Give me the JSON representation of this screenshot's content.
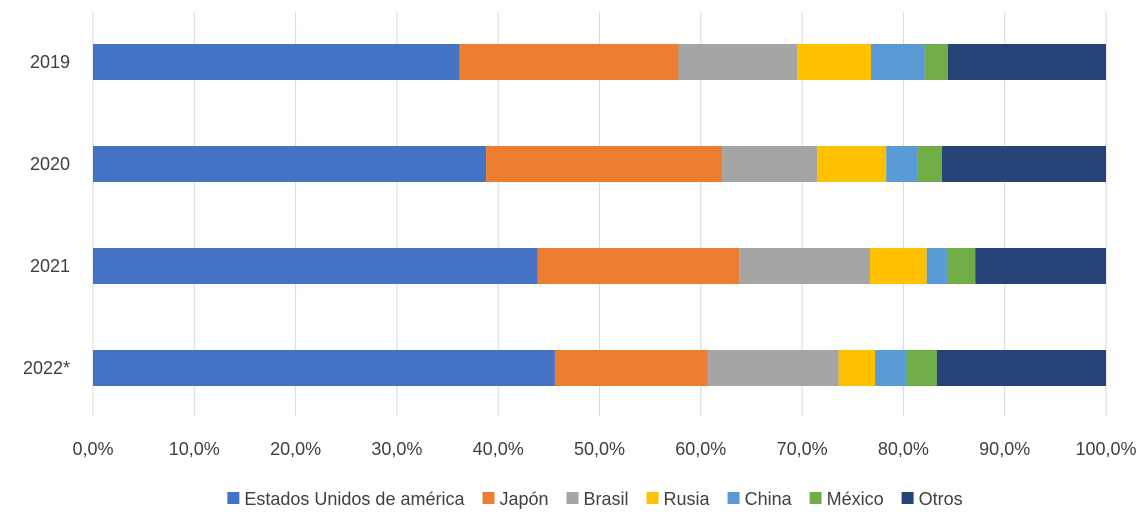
{
  "chart_data": {
    "type": "bar",
    "orientation": "horizontal",
    "stacked": "percent",
    "categories": [
      "2019",
      "2020",
      "2021",
      "2022*"
    ],
    "xlim": [
      0,
      100
    ],
    "x_ticks": [
      "0,0%",
      "10,0%",
      "20,0%",
      "30,0%",
      "40,0%",
      "50,0%",
      "60,0%",
      "70,0%",
      "80,0%",
      "90,0%",
      "100,0%"
    ],
    "grid": "vertical",
    "legend_position": "bottom",
    "series": [
      {
        "name": "Estados Unidos de américa",
        "color": "#4472C4",
        "values": [
          36.2,
          38.8,
          43.9,
          45.6
        ]
      },
      {
        "name": "Japón",
        "color": "#ED7D31",
        "values": [
          21.6,
          23.3,
          19.9,
          15.1
        ]
      },
      {
        "name": "Brasil",
        "color": "#A5A5A5",
        "values": [
          11.7,
          9.4,
          12.9,
          12.9
        ]
      },
      {
        "name": "Rusia",
        "color": "#FFC000",
        "values": [
          7.3,
          6.8,
          5.6,
          3.6
        ]
      },
      {
        "name": "China",
        "color": "#5B9BD5",
        "values": [
          5.3,
          3.1,
          2.0,
          3.1
        ]
      },
      {
        "name": "México",
        "color": "#70AD47",
        "values": [
          2.3,
          2.4,
          2.8,
          3.0
        ]
      },
      {
        "name": "Otros",
        "color": "#264478",
        "values": [
          15.6,
          16.2,
          12.9,
          16.7
        ]
      }
    ]
  }
}
